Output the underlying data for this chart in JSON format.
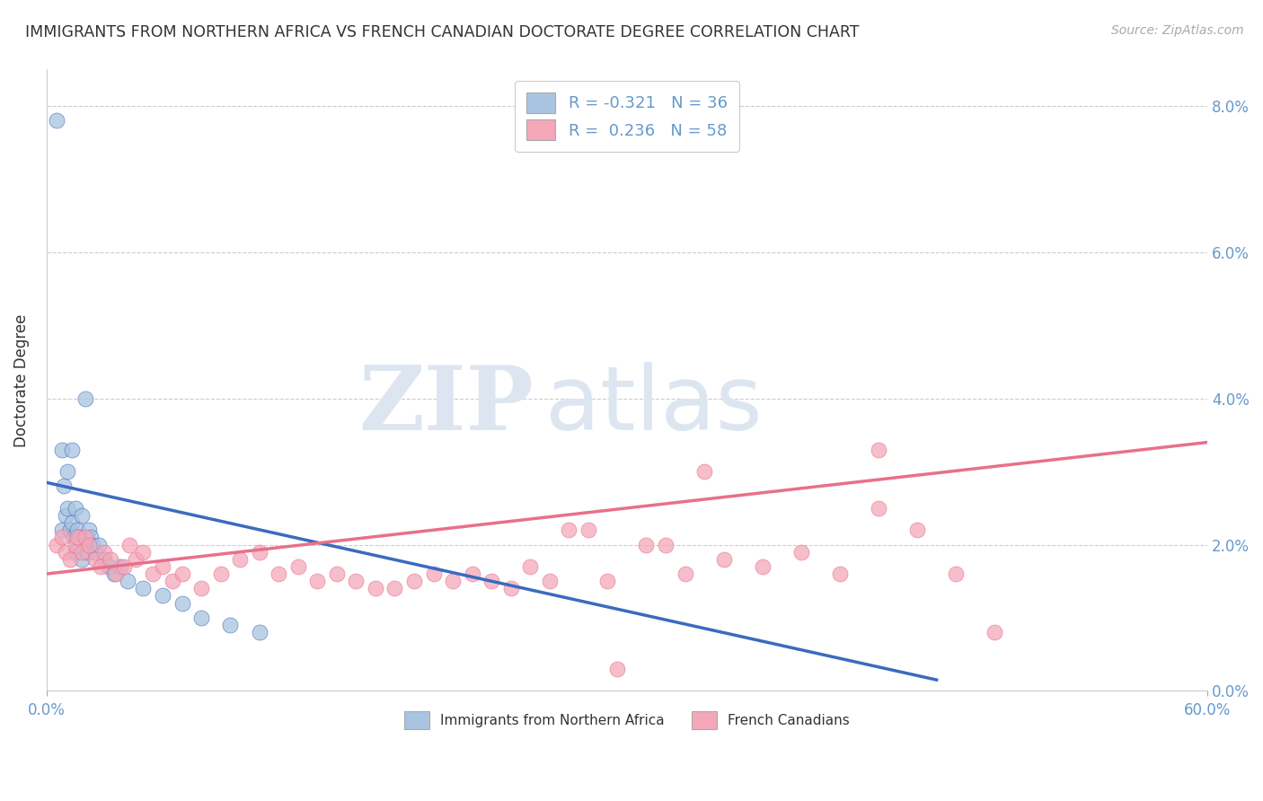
{
  "title": "IMMIGRANTS FROM NORTHERN AFRICA VS FRENCH CANADIAN DOCTORATE DEGREE CORRELATION CHART",
  "source": "Source: ZipAtlas.com",
  "xlabel": "",
  "ylabel": "Doctorate Degree",
  "legend_label_1": "Immigrants from Northern Africa",
  "legend_label_2": "French Canadians",
  "R1": -0.321,
  "N1": 36,
  "R2": 0.236,
  "N2": 58,
  "color1": "#a8c4e0",
  "color2": "#f4a7b9",
  "line_color1": "#3a6bbf",
  "line_color2": "#e8708a",
  "xlim": [
    0.0,
    0.6
  ],
  "ylim": [
    0.0,
    0.085
  ],
  "xticks": [
    0.0,
    0.6
  ],
  "xticklabels": [
    "0.0%",
    "60.0%"
  ],
  "yticks": [
    0.0,
    0.02,
    0.04,
    0.06,
    0.08
  ],
  "yticklabels": [
    "0.0%",
    "2.0%",
    "4.0%",
    "6.0%",
    "8.0%"
  ],
  "scatter1_x": [
    0.005,
    0.008,
    0.008,
    0.009,
    0.01,
    0.011,
    0.011,
    0.012,
    0.013,
    0.014,
    0.015,
    0.015,
    0.016,
    0.017,
    0.018,
    0.018,
    0.02,
    0.021,
    0.022,
    0.023,
    0.024,
    0.025,
    0.027,
    0.03,
    0.032,
    0.035,
    0.038,
    0.042,
    0.05,
    0.06,
    0.07,
    0.08,
    0.095,
    0.11,
    0.02,
    0.013
  ],
  "scatter1_y": [
    0.078,
    0.033,
    0.022,
    0.028,
    0.024,
    0.03,
    0.025,
    0.022,
    0.023,
    0.021,
    0.019,
    0.025,
    0.022,
    0.021,
    0.018,
    0.024,
    0.02,
    0.019,
    0.022,
    0.021,
    0.02,
    0.019,
    0.02,
    0.018,
    0.017,
    0.016,
    0.017,
    0.015,
    0.014,
    0.013,
    0.012,
    0.01,
    0.009,
    0.008,
    0.04,
    0.033
  ],
  "scatter2_x": [
    0.005,
    0.008,
    0.01,
    0.012,
    0.015,
    0.016,
    0.018,
    0.02,
    0.022,
    0.025,
    0.028,
    0.03,
    0.033,
    0.036,
    0.04,
    0.043,
    0.046,
    0.05,
    0.055,
    0.06,
    0.065,
    0.07,
    0.08,
    0.09,
    0.1,
    0.11,
    0.12,
    0.13,
    0.14,
    0.15,
    0.16,
    0.17,
    0.18,
    0.19,
    0.2,
    0.21,
    0.22,
    0.23,
    0.25,
    0.27,
    0.29,
    0.31,
    0.33,
    0.35,
    0.37,
    0.39,
    0.41,
    0.43,
    0.45,
    0.47,
    0.49,
    0.28,
    0.26,
    0.24,
    0.32,
    0.43,
    0.34,
    0.295
  ],
  "scatter2_y": [
    0.02,
    0.021,
    0.019,
    0.018,
    0.02,
    0.021,
    0.019,
    0.021,
    0.02,
    0.018,
    0.017,
    0.019,
    0.018,
    0.016,
    0.017,
    0.02,
    0.018,
    0.019,
    0.016,
    0.017,
    0.015,
    0.016,
    0.014,
    0.016,
    0.018,
    0.019,
    0.016,
    0.017,
    0.015,
    0.016,
    0.015,
    0.014,
    0.014,
    0.015,
    0.016,
    0.015,
    0.016,
    0.015,
    0.017,
    0.022,
    0.015,
    0.02,
    0.016,
    0.018,
    0.017,
    0.019,
    0.016,
    0.025,
    0.022,
    0.016,
    0.008,
    0.022,
    0.015,
    0.014,
    0.02,
    0.033,
    0.03,
    0.003
  ],
  "line1_x": [
    0.0,
    0.46
  ],
  "line1_y": [
    0.0285,
    0.0015
  ],
  "line2_x": [
    0.0,
    0.6
  ],
  "line2_y": [
    0.016,
    0.034
  ],
  "background_color": "#ffffff",
  "grid_color": "#cccccc",
  "title_color": "#333333",
  "axis_color": "#6699cc",
  "tick_color": "#6699cc",
  "text_color_dark": "#333333"
}
